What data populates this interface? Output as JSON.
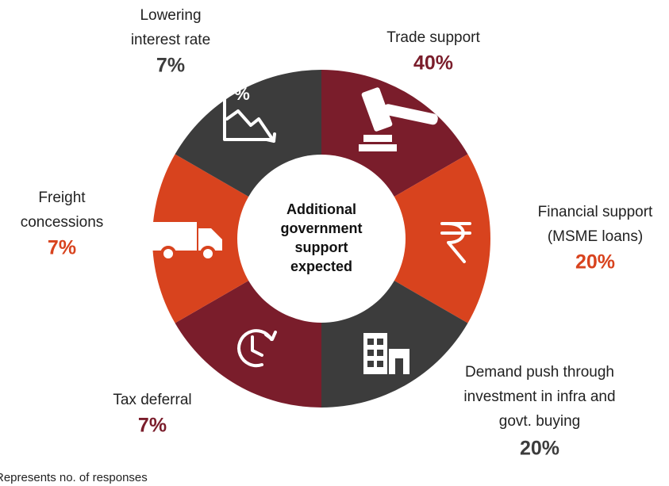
{
  "center_label": [
    "Additional",
    "government",
    "support",
    "expected"
  ],
  "segments": [
    {
      "label": [
        "Trade support"
      ],
      "percent": "40%",
      "color": "#7a1d2b"
    },
    {
      "label": [
        "Financial support",
        "(MSME loans)"
      ],
      "percent": "20%",
      "color": "#d8431e"
    },
    {
      "label": [
        "Demand push through",
        "investment in infra and",
        "govt. buying"
      ],
      "percent": "20%",
      "color": "#3c3c3c"
    },
    {
      "label": [
        "Tax deferral"
      ],
      "percent": "7%",
      "color": "#7a1d2b"
    },
    {
      "label": [
        "Freight",
        "concessions"
      ],
      "percent": "7%",
      "color": "#d8431e"
    },
    {
      "label": [
        "Lowering",
        "interest rate"
      ],
      "percent": "7%",
      "color": "#3c3c3c"
    }
  ],
  "footnote": "Represents no. of responses"
}
